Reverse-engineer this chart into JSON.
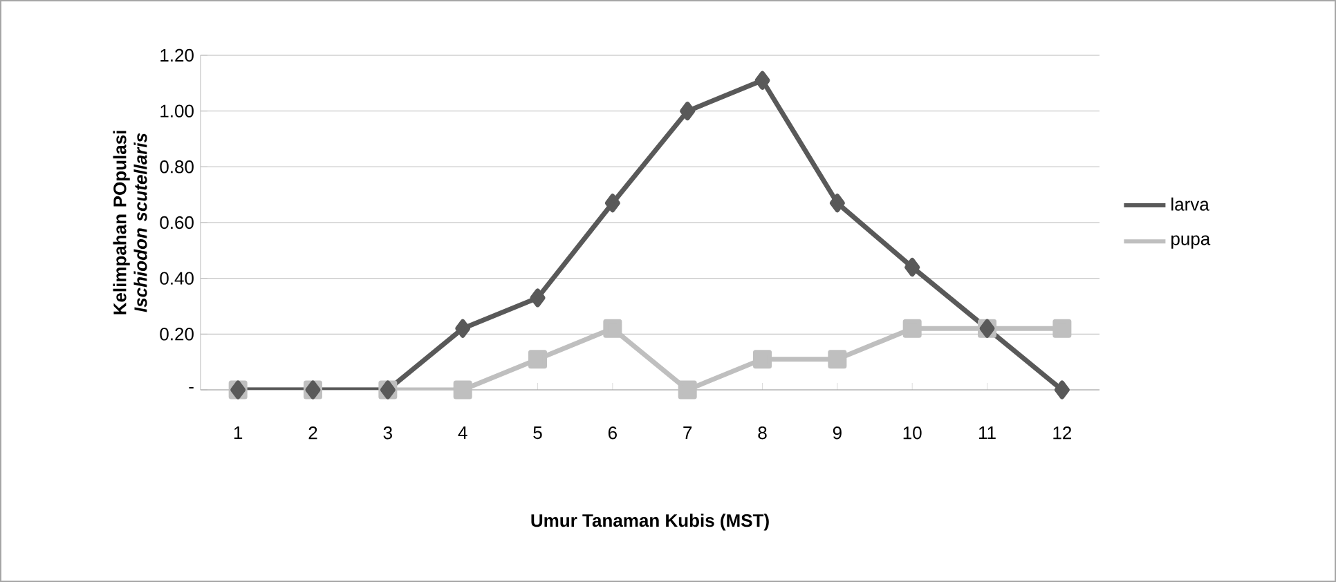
{
  "chart_data": {
    "type": "line",
    "xlabel": "Umur Tanaman Kubis (MST)",
    "ylabel": "Kelimpahan POpulasi *Ischiodon scutellaris*",
    "categories": [
      "1",
      "2",
      "3",
      "4",
      "5",
      "6",
      "7",
      "8",
      "9",
      "10",
      "11",
      "12"
    ],
    "series": [
      {
        "name": "larva",
        "color": "#595959",
        "marker": "diamond",
        "values": [
          0,
          0,
          0,
          0.22,
          0.33,
          0.67,
          1.0,
          1.11,
          0.67,
          0.44,
          0.22,
          0
        ]
      },
      {
        "name": "pupa",
        "color": "#bfbfbf",
        "marker": "square",
        "values": [
          0,
          0,
          0,
          0,
          0.11,
          0.22,
          0,
          0.11,
          0.11,
          0.22,
          0.22,
          0.22
        ]
      }
    ],
    "ylim": [
      0,
      1.2
    ],
    "yticks": [
      {
        "value": 0,
        "label": "-"
      },
      {
        "value": 0.2,
        "label": "0.20"
      },
      {
        "value": 0.4,
        "label": "0.40"
      },
      {
        "value": 0.6,
        "label": "0.60"
      },
      {
        "value": 0.8,
        "label": "0.80"
      },
      {
        "value": 1.0,
        "label": "1.00"
      },
      {
        "value": 1.2,
        "label": "1.20"
      }
    ],
    "grid": "y",
    "legend": "right",
    "line_style": "solid"
  }
}
